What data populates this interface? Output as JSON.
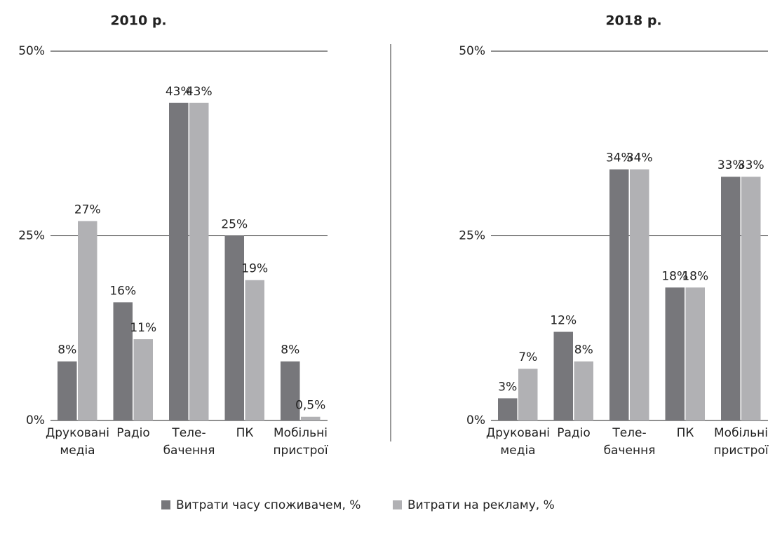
{
  "chart_data": [
    {
      "type": "bar",
      "title": "2010 р.",
      "categories": [
        [
          "Друковані",
          "медіа"
        ],
        [
          "Радіо"
        ],
        [
          "Теле-",
          "бачення"
        ],
        [
          "ПК"
        ],
        [
          "Мобільні",
          "пристрої"
        ]
      ],
      "series": [
        {
          "color": "#77777b",
          "values": [
            8,
            16,
            43,
            25,
            8
          ],
          "value_labels": [
            "8%",
            "16%",
            "43%",
            "25%",
            "8%"
          ]
        },
        {
          "color": "#b1b1b4",
          "values": [
            27,
            11,
            43,
            19,
            0.5
          ],
          "value_labels": [
            "27%",
            "11%",
            "43%",
            "19%",
            "0,5%"
          ]
        }
      ],
      "ylim": [
        0,
        50
      ],
      "yticks": [
        {
          "value": 0,
          "label": "0%"
        },
        {
          "value": 25,
          "label": "25%"
        },
        {
          "value": 50,
          "label": "50%"
        }
      ],
      "grid": true
    },
    {
      "type": "bar",
      "title": "2018 р.",
      "categories": [
        [
          "Друковані",
          "медіа"
        ],
        [
          "Радіо"
        ],
        [
          "Теле-",
          "бачення"
        ],
        [
          "ПК"
        ],
        [
          "Мобільні",
          "пристрої"
        ]
      ],
      "series": [
        {
          "color": "#77777b",
          "values": [
            3,
            12,
            34,
            18,
            33
          ],
          "value_labels": [
            "3%",
            "12%",
            "34%",
            "18%",
            "33%"
          ]
        },
        {
          "color": "#b1b1b4",
          "values": [
            7,
            8,
            34,
            18,
            33
          ],
          "value_labels": [
            "7%",
            "8%",
            "34%",
            "18%",
            "33%"
          ]
        }
      ],
      "ylim": [
        0,
        50
      ],
      "yticks": [
        {
          "value": 0,
          "label": "0%"
        },
        {
          "value": 25,
          "label": "25%"
        },
        {
          "value": 50,
          "label": "50%"
        }
      ],
      "grid": true
    }
  ],
  "legend": [
    {
      "name": "Витрати часу споживачем, %",
      "color": "#77777b"
    },
    {
      "name": "Витрати на рекламу, %",
      "color": "#b1b1b4"
    }
  ]
}
